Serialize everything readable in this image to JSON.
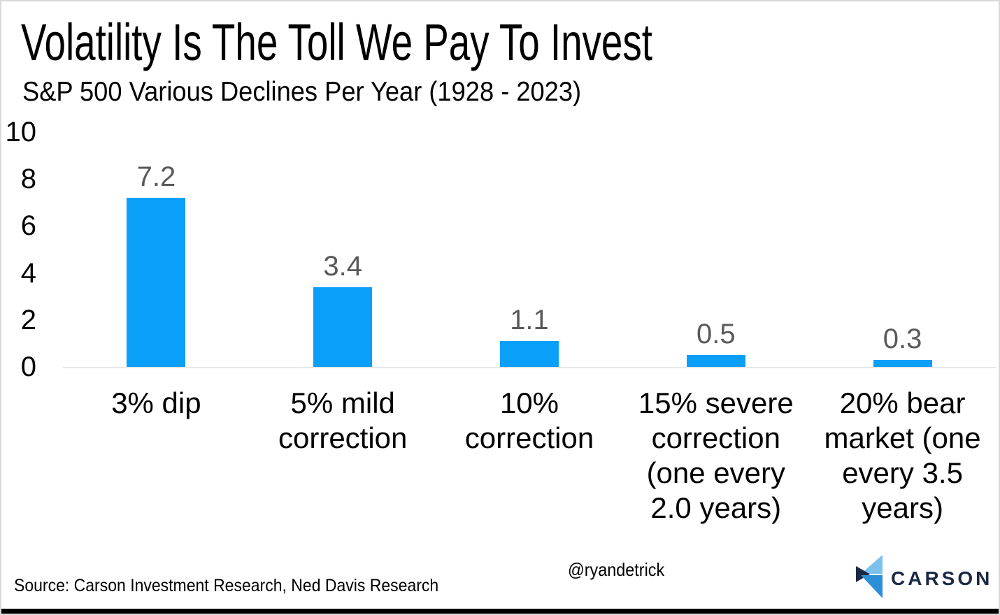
{
  "page": {
    "title": "Volatility Is The Toll We Pay To Invest",
    "subtitle": "S&P 500 Various Declines Per Year (1928 - 2023)",
    "source_note": "Source: Carson Investment Research, Ned Davis Research",
    "twitter_handle": "@ryandetrick",
    "brand": {
      "name": "CARSON",
      "icon": "carson-chevron-logo",
      "icon_colors": {
        "light_blue": "#7ac2ec",
        "mid_blue": "#2d8fd8",
        "navy": "#1b2944"
      },
      "text_color": "#1b2944"
    }
  },
  "chart_data": {
    "type": "bar",
    "title": "Volatility Is The Toll We Pay To Invest",
    "subtitle": "S&P 500 Various Declines Per Year (1928 - 2023)",
    "categories": [
      "3% dip",
      "5% mild correction",
      "10% correction",
      "15% severe correction (one every 2.0 years)",
      "20% bear market (one every 3.5 years)"
    ],
    "category_lines": [
      [
        "3% dip"
      ],
      [
        "5% mild",
        "correction"
      ],
      [
        "10%",
        "correction"
      ],
      [
        "15% severe",
        "correction",
        "(one every",
        "2.0 years)"
      ],
      [
        "20% bear",
        "market (one",
        "every 3.5",
        "years)"
      ]
    ],
    "values": [
      7.2,
      3.4,
      1.1,
      0.5,
      0.3
    ],
    "value_labels": [
      "7.2",
      "3.4",
      "1.1",
      "0.5",
      "0.3"
    ],
    "xlabel": "",
    "ylabel": "",
    "ylim": [
      0,
      10
    ],
    "yticks": [
      10,
      8,
      6,
      4,
      2,
      0
    ],
    "grid": false,
    "legend": false,
    "bar_color": "#0aa0f9",
    "value_label_color": "#595959",
    "baseline_color": "#e7e7e7"
  }
}
